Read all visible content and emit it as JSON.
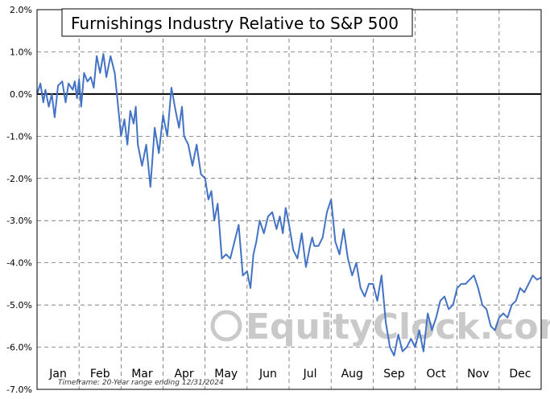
{
  "chart_data": {
    "type": "line",
    "title": "Furnishings Industry Relative to S&P 500",
    "ylim": [
      -7.0,
      2.0
    ],
    "y_ticks": [
      "2.0%",
      "1.0%",
      "0.0%",
      "-1.0%",
      "-2.0%",
      "-3.0%",
      "-4.0%",
      "-5.0%",
      "-6.0%",
      "-7.0%"
    ],
    "y_tick_values": [
      2,
      1,
      0,
      -1,
      -2,
      -3,
      -4,
      -5,
      -6,
      -7
    ],
    "x_categories": [
      "Jan",
      "Feb",
      "Mar",
      "Apr",
      "May",
      "Jun",
      "Jul",
      "Aug",
      "Sep",
      "Oct",
      "Nov",
      "Dec"
    ],
    "xlim": [
      0,
      12
    ],
    "series": [
      {
        "color": "#4472c4",
        "x": [
          0.0,
          0.08,
          0.15,
          0.2,
          0.28,
          0.35,
          0.42,
          0.5,
          0.6,
          0.68,
          0.75,
          0.85,
          0.9,
          0.95,
          1.0,
          1.05,
          1.12,
          1.2,
          1.28,
          1.35,
          1.42,
          1.5,
          1.58,
          1.65,
          1.75,
          1.85,
          1.92,
          2.0,
          2.08,
          2.15,
          2.22,
          2.3,
          2.35,
          2.4,
          2.5,
          2.6,
          2.7,
          2.8,
          2.9,
          3.0,
          3.1,
          3.2,
          3.3,
          3.38,
          3.45,
          3.5,
          3.6,
          3.7,
          3.8,
          3.9,
          4.0,
          4.08,
          4.15,
          4.22,
          4.3,
          4.4,
          4.5,
          4.6,
          4.7,
          4.8,
          4.9,
          5.0,
          5.08,
          5.15,
          5.22,
          5.3,
          5.4,
          5.5,
          5.6,
          5.7,
          5.78,
          5.85,
          5.92,
          6.0,
          6.1,
          6.2,
          6.3,
          6.4,
          6.5,
          6.55,
          6.6,
          6.7,
          6.8,
          6.9,
          7.0,
          7.1,
          7.2,
          7.3,
          7.4,
          7.5,
          7.6,
          7.7,
          7.8,
          7.9,
          8.0,
          8.1,
          8.2,
          8.3,
          8.4,
          8.5,
          8.6,
          8.7,
          8.8,
          8.9,
          9.0,
          9.1,
          9.2,
          9.3,
          9.4,
          9.5,
          9.6,
          9.7,
          9.8,
          9.9,
          10.0,
          10.1,
          10.2,
          10.3,
          10.4,
          10.5,
          10.6,
          10.7,
          10.8,
          10.9,
          11.0,
          11.1,
          11.2,
          11.3,
          11.4,
          11.5,
          11.6,
          11.7,
          11.8,
          11.9,
          12.0
        ],
        "values": [
          0.0,
          0.25,
          -0.2,
          0.1,
          -0.3,
          0.0,
          -0.55,
          0.2,
          0.3,
          -0.2,
          0.25,
          0.1,
          0.3,
          -0.1,
          0.35,
          -0.3,
          0.5,
          0.3,
          0.4,
          0.15,
          0.9,
          0.5,
          0.95,
          0.4,
          0.9,
          0.5,
          -0.2,
          -1.0,
          -0.6,
          -1.2,
          -0.4,
          -0.7,
          -0.3,
          -1.2,
          -1.7,
          -1.2,
          -2.2,
          -0.8,
          -1.4,
          -0.5,
          -1.0,
          0.15,
          -0.4,
          -0.8,
          -0.3,
          -1.0,
          -1.2,
          -1.7,
          -1.2,
          -1.9,
          -2.0,
          -2.5,
          -2.3,
          -3.0,
          -2.6,
          -3.9,
          -3.8,
          -3.9,
          -3.5,
          -3.1,
          -4.3,
          -4.2,
          -4.6,
          -3.8,
          -3.5,
          -3.0,
          -3.3,
          -2.9,
          -2.8,
          -3.2,
          -2.9,
          -3.3,
          -2.7,
          -3.1,
          -3.7,
          -3.9,
          -3.3,
          -4.1,
          -3.6,
          -3.4,
          -3.6,
          -3.6,
          -3.4,
          -2.8,
          -2.5,
          -3.5,
          -3.8,
          -3.2,
          -3.9,
          -4.3,
          -4.0,
          -4.6,
          -4.8,
          -4.5,
          -4.5,
          -4.9,
          -4.3,
          -5.4,
          -6.0,
          -6.2,
          -5.7,
          -6.1,
          -6.0,
          -5.8,
          -6.0,
          -5.6,
          -6.1,
          -5.2,
          -5.6,
          -5.3,
          -4.9,
          -4.8,
          -5.1,
          -5.0,
          -4.6,
          -4.5,
          -4.5,
          -4.4,
          -4.3,
          -4.6,
          -5.0,
          -5.1,
          -5.5,
          -5.6,
          -5.3,
          -5.2,
          -5.3,
          -5.0,
          -4.9,
          -4.6,
          -4.7,
          -4.5,
          -4.3,
          -4.4,
          -4.35
        ]
      }
    ],
    "grid": true,
    "baseline": 0.0,
    "footnote": "Timeframe: 20-Year range ending 12/31/2024",
    "watermark": "EquityClock.com"
  }
}
